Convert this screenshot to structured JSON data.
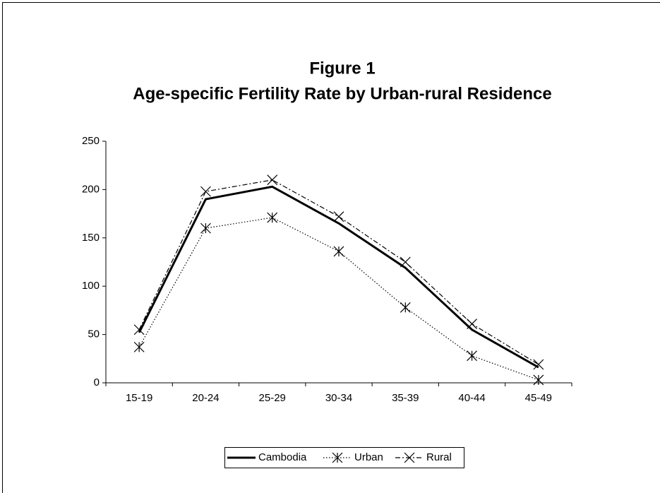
{
  "chart_data": {
    "type": "line",
    "title": "Figure 1",
    "subtitle": "Age-specific Fertility Rate by Urban-rural Residence",
    "categories": [
      "15-19",
      "20-24",
      "25-29",
      "30-34",
      "35-39",
      "40-44",
      "45-49"
    ],
    "series": [
      {
        "name": "Cambodia",
        "color": "#000000",
        "dash": "solid",
        "marker": "none",
        "values": [
          52,
          190,
          203,
          165,
          119,
          55,
          16
        ]
      },
      {
        "name": "Urban",
        "color": "#000000",
        "dash": "dotted",
        "marker": "asterisk",
        "values": [
          37,
          160,
          171,
          136,
          78,
          28,
          3
        ]
      },
      {
        "name": "Rural",
        "color": "#000000",
        "dash": "dashdot",
        "marker": "x",
        "values": [
          55,
          198,
          210,
          172,
          125,
          61,
          19
        ]
      }
    ],
    "ylim": [
      0,
      250
    ],
    "yticks": [
      0,
      50,
      100,
      150,
      200,
      250
    ],
    "grid": false,
    "legend": "bottom"
  }
}
